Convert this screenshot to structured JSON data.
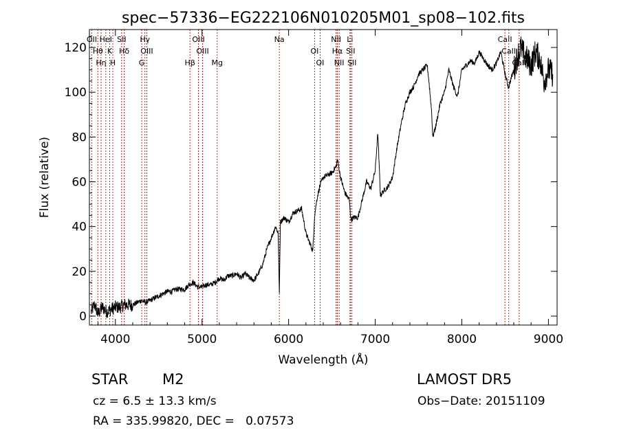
{
  "chart_data": {
    "type": "line",
    "title": "spec−57336−EG222106N010205M01_sp08−102.fits",
    "xlabel": "Wavelength (Å)",
    "ylabel": "Flux (relative)",
    "xlim": [
      3700,
      9100
    ],
    "ylim": [
      -4,
      128
    ],
    "xticks": [
      4000,
      5000,
      6000,
      7000,
      8000,
      9000
    ],
    "yticks": [
      0,
      20,
      40,
      60,
      80,
      100,
      120
    ],
    "grid": false,
    "line_color": "#000000",
    "marker_color": "#b22222",
    "series": [
      {
        "x": [
          3720,
          3760,
          3800,
          3850,
          3900,
          3950,
          4000,
          4050,
          4100,
          4150,
          4200,
          4250,
          4300,
          4350,
          4400,
          4450,
          4500,
          4550,
          4600,
          4650,
          4700,
          4750,
          4800,
          4850,
          4900,
          4950,
          5000,
          5050,
          5100,
          5150,
          5200,
          5250,
          5300,
          5350,
          5400,
          5450,
          5500,
          5550,
          5600,
          5650,
          5700,
          5750,
          5800,
          5850,
          5880,
          5893,
          5905,
          5950,
          6000,
          6050,
          6100,
          6150,
          6200,
          6250,
          6280,
          6300,
          6330,
          6360,
          6400,
          6450,
          6500,
          6550,
          6563,
          6600,
          6650,
          6700,
          6720,
          6750,
          6800,
          6850,
          6900,
          6950,
          7000,
          7030,
          7060,
          7100,
          7150,
          7200,
          7250,
          7300,
          7350,
          7400,
          7450,
          7500,
          7550,
          7600,
          7620,
          7650,
          7665,
          7700,
          7750,
          7800,
          7850,
          7900,
          7950,
          8000,
          8050,
          8100,
          8150,
          8200,
          8250,
          8300,
          8350,
          8400,
          8450,
          8500,
          8540,
          8560,
          8600,
          8650,
          8680,
          8700,
          8750,
          8800,
          8850,
          8900,
          8950,
          9000,
          9050
        ],
        "values": [
          2,
          5,
          1,
          4,
          2,
          3,
          4,
          4,
          5,
          5,
          5,
          6,
          7,
          6,
          7,
          8,
          9,
          10,
          11,
          11,
          12,
          12,
          12,
          14,
          15,
          13,
          13,
          14,
          14,
          15,
          17,
          16,
          18,
          18,
          19,
          17,
          19,
          17,
          16,
          19,
          23,
          30,
          35,
          40,
          37,
          10,
          42,
          44,
          42,
          46,
          47,
          48,
          37,
          32,
          29,
          45,
          53,
          58,
          62,
          63,
          64,
          67,
          70,
          62,
          55,
          52,
          43,
          44,
          44,
          52,
          60,
          57,
          65,
          82,
          54,
          56,
          58,
          62,
          75,
          86,
          95,
          100,
          103,
          108,
          110,
          112,
          105,
          92,
          80,
          85,
          95,
          100,
          110,
          103,
          98,
          110,
          112,
          114,
          113,
          118,
          115,
          112,
          110,
          113,
          118,
          108,
          102,
          105,
          110,
          117,
          120,
          118,
          115,
          112,
          118,
          115,
          105,
          110,
          108
        ]
      }
    ],
    "markers": [
      {
        "wave": 3727,
        "label": "OII"
      },
      {
        "wave": 3797,
        "label": "Hθ"
      },
      {
        "wave": 3835,
        "label": "Hη"
      },
      {
        "wave": 3889,
        "label": "HeI"
      },
      {
        "wave": 3934,
        "label": "K"
      },
      {
        "wave": 3970,
        "label": "H"
      },
      {
        "wave": 4072,
        "label": "SII"
      },
      {
        "wave": 4102,
        "label": "Hδ"
      },
      {
        "wave": 4304,
        "label": "G"
      },
      {
        "wave": 4341,
        "label": "Hγ"
      },
      {
        "wave": 4363,
        "label": "OIII"
      },
      {
        "wave": 4861,
        "label": "Hβ"
      },
      {
        "wave": 4959,
        "label": "OIII"
      },
      {
        "wave": 5007,
        "label": "OIII"
      },
      {
        "wave": 5175,
        "label": "Mg"
      },
      {
        "wave": 5893,
        "label": "Na"
      },
      {
        "wave": 6300,
        "label": "OI"
      },
      {
        "wave": 6364,
        "label": "OI"
      },
      {
        "wave": 6548,
        "label": "NII"
      },
      {
        "wave": 6563,
        "label": "Hα"
      },
      {
        "wave": 6584,
        "label": "NII"
      },
      {
        "wave": 6708,
        "label": "Li"
      },
      {
        "wave": 6716,
        "label": "SII"
      },
      {
        "wave": 6731,
        "label": "SII"
      },
      {
        "wave": 8498,
        "label": "CaII"
      },
      {
        "wave": 8542,
        "label": "CaII"
      },
      {
        "wave": 8662,
        "label": "CaII"
      }
    ]
  },
  "info": {
    "class": "STAR",
    "subclass": "M2",
    "redshift": "cz = 6.5 ± 13.3 km/s",
    "coords": "RA = 335.99820, DEC =   0.07573",
    "survey": "LAMOST DR5",
    "obs_date": "Obs−Date: 20151109"
  }
}
